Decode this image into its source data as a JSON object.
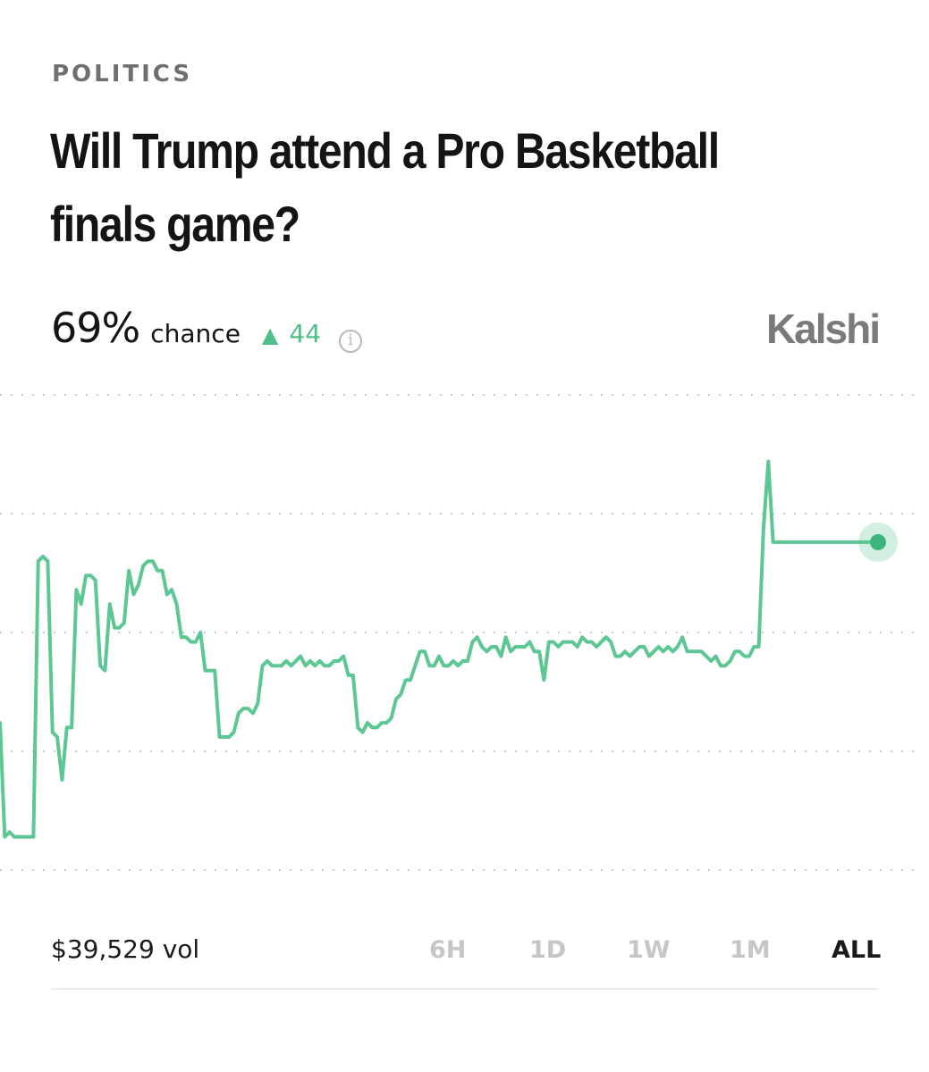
{
  "header": {
    "category": "POLITICS",
    "title": "Will Trump attend a Pro Basketball finals game?"
  },
  "stats": {
    "probability": "69%",
    "probability_suffix": "chance",
    "change_icon": "triangle-up-icon",
    "change": "44",
    "info_icon": "info-icon"
  },
  "brand": "Kalshi",
  "footer": {
    "volume": "$39,529 vol",
    "ranges": [
      "6H",
      "1D",
      "1W",
      "1M",
      "ALL"
    ],
    "active_range": "ALL"
  },
  "colors": {
    "line": "#5cc792",
    "up": "#4fc08a",
    "gridline": "#c9c9c9",
    "inactive_tab": "#c6c6c6"
  },
  "chart_data": {
    "type": "line",
    "title": "",
    "xlabel": "",
    "ylabel": "",
    "ylim": [
      0,
      100
    ],
    "grid": true,
    "gridlines": [
      0,
      25,
      50,
      75,
      100
    ],
    "series": [
      {
        "name": "",
        "x": [
          0,
          1,
          2,
          3,
          4,
          5,
          6,
          7,
          8,
          9,
          10,
          11,
          12,
          13,
          14,
          15,
          16,
          17,
          18,
          19,
          20,
          21,
          22,
          23,
          24,
          25,
          26,
          27,
          28,
          29,
          30,
          31,
          32,
          33,
          34,
          35,
          36,
          37,
          38,
          39,
          40,
          41,
          42,
          43,
          44,
          45,
          46,
          47,
          48,
          49,
          50,
          51,
          52,
          53,
          54,
          55,
          56,
          57,
          58,
          59,
          60,
          61,
          62,
          63,
          64,
          65,
          66,
          67,
          68,
          69,
          70,
          71,
          72,
          73,
          74,
          75,
          76,
          77,
          78,
          79,
          80,
          81,
          82,
          83,
          84,
          85,
          86,
          87,
          88,
          89,
          90,
          91,
          92,
          93,
          94,
          95,
          96,
          97,
          98,
          99,
          100,
          101,
          102,
          103,
          104,
          105,
          106,
          107,
          108,
          109,
          110,
          111,
          112,
          113,
          114,
          115,
          116,
          117,
          118,
          119,
          120,
          121,
          122,
          123,
          124,
          125,
          126,
          127,
          128,
          129,
          130,
          131,
          132,
          133,
          134,
          135,
          136,
          137,
          138,
          139,
          140,
          141,
          142,
          143,
          144,
          145,
          146,
          147,
          148,
          149,
          150,
          151,
          152,
          153,
          154,
          155,
          156,
          157,
          158,
          159,
          160,
          161,
          162,
          163,
          164,
          165,
          166,
          167,
          168,
          169,
          170,
          171,
          172,
          173,
          174,
          175,
          176,
          177,
          178,
          179,
          180,
          181,
          182,
          183,
          184
        ],
        "values": [
          31,
          7,
          8,
          7,
          7,
          7,
          7,
          7,
          65,
          66,
          65,
          29,
          28,
          19,
          30,
          30,
          59,
          56,
          62,
          62,
          61,
          43,
          42,
          56,
          51,
          51,
          52,
          63,
          58,
          60,
          64,
          65,
          65,
          63,
          63,
          58,
          59,
          56,
          49,
          49,
          48,
          48,
          50,
          42,
          42,
          42,
          28,
          28,
          28,
          29,
          33,
          34,
          34,
          33,
          35,
          43,
          44,
          43,
          43,
          43,
          44,
          43,
          44,
          45,
          43,
          44,
          43,
          44,
          43,
          43,
          44,
          44,
          45,
          41,
          41,
          30,
          29,
          31,
          30,
          30,
          31,
          31,
          32,
          36,
          37,
          40,
          40,
          43,
          46,
          46,
          43,
          43,
          45,
          43,
          43,
          44,
          43,
          44,
          44,
          48,
          49,
          47,
          46,
          47,
          47,
          45,
          49,
          46,
          47,
          47,
          47,
          48,
          46,
          46,
          40,
          48,
          48,
          47,
          48,
          48,
          48,
          47,
          49,
          48,
          48,
          47,
          48,
          49,
          48,
          45,
          45,
          46,
          45,
          46,
          47,
          47,
          45,
          46,
          47,
          46,
          47,
          46,
          47,
          49,
          46,
          46,
          46,
          46,
          45,
          44,
          45,
          43,
          43,
          44,
          46,
          46,
          45,
          45,
          47,
          47,
          72,
          86,
          69,
          69,
          69,
          69,
          69,
          69,
          69,
          69,
          69,
          69,
          69,
          69,
          69,
          69,
          69,
          69,
          69,
          69,
          69,
          69,
          69,
          69,
          69
        ],
        "note": ""
      }
    ]
  }
}
